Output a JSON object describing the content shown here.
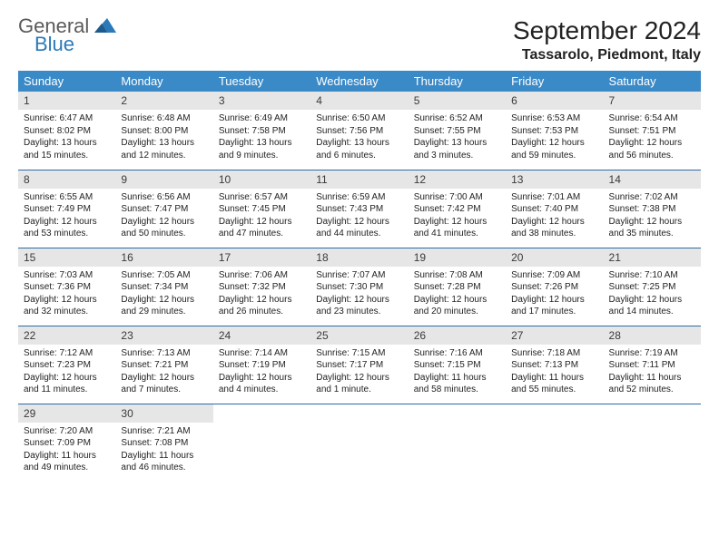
{
  "logo": {
    "word1": "General",
    "word2": "Blue"
  },
  "title": "September 2024",
  "location": "Tassarolo, Piedmont, Italy",
  "colors": {
    "header_bg": "#3a8ac8",
    "daynum_bg": "#e6e6e6",
    "rule": "#2a6ca8"
  },
  "weekdays": [
    "Sunday",
    "Monday",
    "Tuesday",
    "Wednesday",
    "Thursday",
    "Friday",
    "Saturday"
  ],
  "days": [
    {
      "n": "1",
      "sr": "Sunrise: 6:47 AM",
      "ss": "Sunset: 8:02 PM",
      "dl": "Daylight: 13 hours and 15 minutes."
    },
    {
      "n": "2",
      "sr": "Sunrise: 6:48 AM",
      "ss": "Sunset: 8:00 PM",
      "dl": "Daylight: 13 hours and 12 minutes."
    },
    {
      "n": "3",
      "sr": "Sunrise: 6:49 AM",
      "ss": "Sunset: 7:58 PM",
      "dl": "Daylight: 13 hours and 9 minutes."
    },
    {
      "n": "4",
      "sr": "Sunrise: 6:50 AM",
      "ss": "Sunset: 7:56 PM",
      "dl": "Daylight: 13 hours and 6 minutes."
    },
    {
      "n": "5",
      "sr": "Sunrise: 6:52 AM",
      "ss": "Sunset: 7:55 PM",
      "dl": "Daylight: 13 hours and 3 minutes."
    },
    {
      "n": "6",
      "sr": "Sunrise: 6:53 AM",
      "ss": "Sunset: 7:53 PM",
      "dl": "Daylight: 12 hours and 59 minutes."
    },
    {
      "n": "7",
      "sr": "Sunrise: 6:54 AM",
      "ss": "Sunset: 7:51 PM",
      "dl": "Daylight: 12 hours and 56 minutes."
    },
    {
      "n": "8",
      "sr": "Sunrise: 6:55 AM",
      "ss": "Sunset: 7:49 PM",
      "dl": "Daylight: 12 hours and 53 minutes."
    },
    {
      "n": "9",
      "sr": "Sunrise: 6:56 AM",
      "ss": "Sunset: 7:47 PM",
      "dl": "Daylight: 12 hours and 50 minutes."
    },
    {
      "n": "10",
      "sr": "Sunrise: 6:57 AM",
      "ss": "Sunset: 7:45 PM",
      "dl": "Daylight: 12 hours and 47 minutes."
    },
    {
      "n": "11",
      "sr": "Sunrise: 6:59 AM",
      "ss": "Sunset: 7:43 PM",
      "dl": "Daylight: 12 hours and 44 minutes."
    },
    {
      "n": "12",
      "sr": "Sunrise: 7:00 AM",
      "ss": "Sunset: 7:42 PM",
      "dl": "Daylight: 12 hours and 41 minutes."
    },
    {
      "n": "13",
      "sr": "Sunrise: 7:01 AM",
      "ss": "Sunset: 7:40 PM",
      "dl": "Daylight: 12 hours and 38 minutes."
    },
    {
      "n": "14",
      "sr": "Sunrise: 7:02 AM",
      "ss": "Sunset: 7:38 PM",
      "dl": "Daylight: 12 hours and 35 minutes."
    },
    {
      "n": "15",
      "sr": "Sunrise: 7:03 AM",
      "ss": "Sunset: 7:36 PM",
      "dl": "Daylight: 12 hours and 32 minutes."
    },
    {
      "n": "16",
      "sr": "Sunrise: 7:05 AM",
      "ss": "Sunset: 7:34 PM",
      "dl": "Daylight: 12 hours and 29 minutes."
    },
    {
      "n": "17",
      "sr": "Sunrise: 7:06 AM",
      "ss": "Sunset: 7:32 PM",
      "dl": "Daylight: 12 hours and 26 minutes."
    },
    {
      "n": "18",
      "sr": "Sunrise: 7:07 AM",
      "ss": "Sunset: 7:30 PM",
      "dl": "Daylight: 12 hours and 23 minutes."
    },
    {
      "n": "19",
      "sr": "Sunrise: 7:08 AM",
      "ss": "Sunset: 7:28 PM",
      "dl": "Daylight: 12 hours and 20 minutes."
    },
    {
      "n": "20",
      "sr": "Sunrise: 7:09 AM",
      "ss": "Sunset: 7:26 PM",
      "dl": "Daylight: 12 hours and 17 minutes."
    },
    {
      "n": "21",
      "sr": "Sunrise: 7:10 AM",
      "ss": "Sunset: 7:25 PM",
      "dl": "Daylight: 12 hours and 14 minutes."
    },
    {
      "n": "22",
      "sr": "Sunrise: 7:12 AM",
      "ss": "Sunset: 7:23 PM",
      "dl": "Daylight: 12 hours and 11 minutes."
    },
    {
      "n": "23",
      "sr": "Sunrise: 7:13 AM",
      "ss": "Sunset: 7:21 PM",
      "dl": "Daylight: 12 hours and 7 minutes."
    },
    {
      "n": "24",
      "sr": "Sunrise: 7:14 AM",
      "ss": "Sunset: 7:19 PM",
      "dl": "Daylight: 12 hours and 4 minutes."
    },
    {
      "n": "25",
      "sr": "Sunrise: 7:15 AM",
      "ss": "Sunset: 7:17 PM",
      "dl": "Daylight: 12 hours and 1 minute."
    },
    {
      "n": "26",
      "sr": "Sunrise: 7:16 AM",
      "ss": "Sunset: 7:15 PM",
      "dl": "Daylight: 11 hours and 58 minutes."
    },
    {
      "n": "27",
      "sr": "Sunrise: 7:18 AM",
      "ss": "Sunset: 7:13 PM",
      "dl": "Daylight: 11 hours and 55 minutes."
    },
    {
      "n": "28",
      "sr": "Sunrise: 7:19 AM",
      "ss": "Sunset: 7:11 PM",
      "dl": "Daylight: 11 hours and 52 minutes."
    },
    {
      "n": "29",
      "sr": "Sunrise: 7:20 AM",
      "ss": "Sunset: 7:09 PM",
      "dl": "Daylight: 11 hours and 49 minutes."
    },
    {
      "n": "30",
      "sr": "Sunrise: 7:21 AM",
      "ss": "Sunset: 7:08 PM",
      "dl": "Daylight: 11 hours and 46 minutes."
    }
  ]
}
